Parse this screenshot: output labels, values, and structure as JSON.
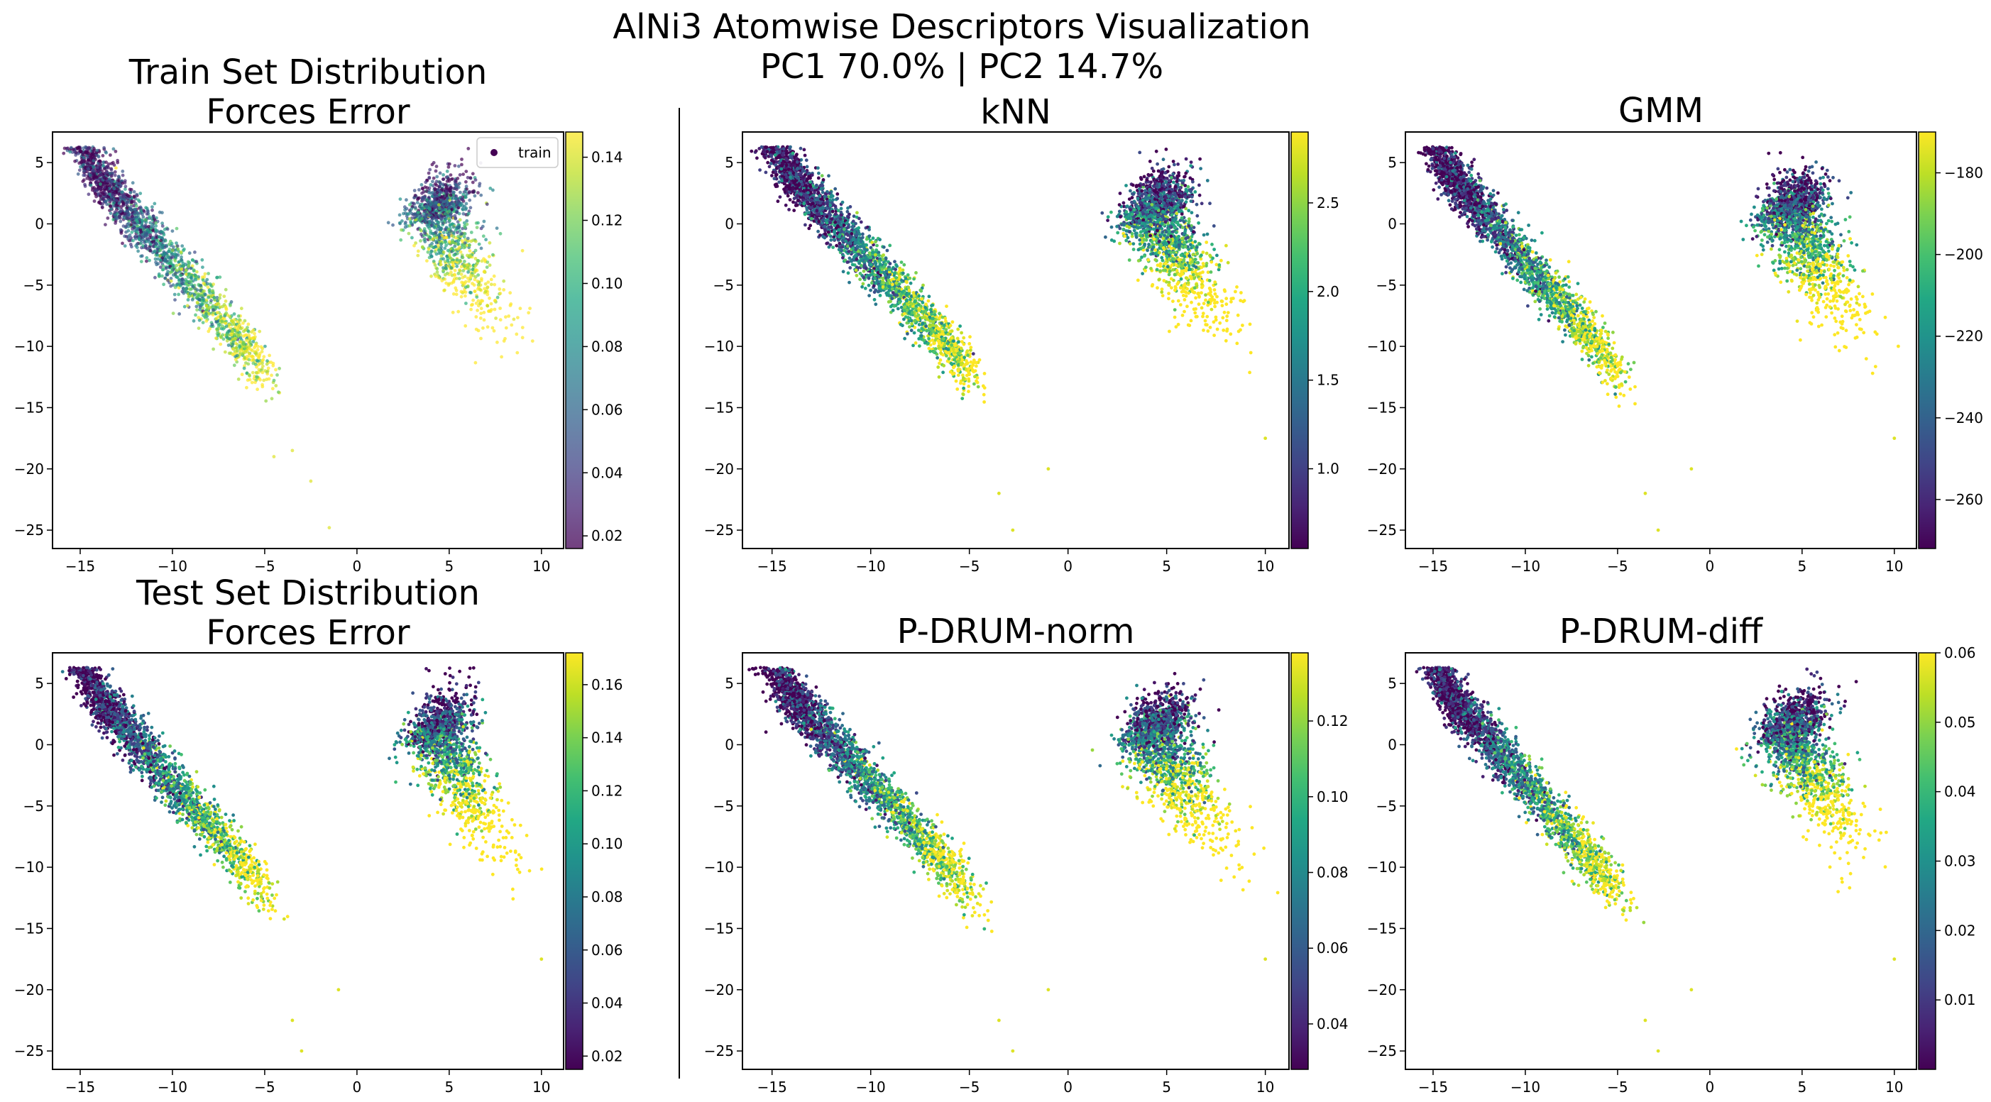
{
  "suptitle": [
    "AlNi3 Atomwise Descriptors Visualization",
    "PC1 70.0% | PC2 14.7%"
  ],
  "chart_data": [
    {
      "type": "scatter",
      "title": [
        "Train Set Distribution",
        "Forces Error"
      ],
      "colormap": "viridis",
      "alpha": 0.7,
      "legend": {
        "label": "train",
        "position": "upper-right"
      },
      "xlim": [
        -16.5,
        11.2
      ],
      "ylim": [
        -26.5,
        7.5
      ],
      "xticks": [
        -15,
        -10,
        -5,
        0,
        5,
        10
      ],
      "yticks": [
        -25,
        -20,
        -15,
        -10,
        -5,
        0,
        5
      ],
      "colorbar": {
        "min": 0.016,
        "max": 0.148,
        "ticks": [
          0.02,
          0.04,
          0.06,
          0.08,
          0.1,
          0.12,
          0.14
        ],
        "decimals": 2
      },
      "clusters": [
        {
          "center": [
            -10.0,
            -3.5
          ],
          "count": 1900,
          "color_low": 0.02,
          "color_high": 0.14
        },
        {
          "center": [
            4.5,
            -1.5
          ],
          "count": 1300,
          "color_low": 0.02,
          "color_high": 0.14
        }
      ],
      "outliers": [
        [
          -1.5,
          -24.8
        ],
        [
          -2.5,
          -21.0
        ],
        [
          -4.5,
          -19.0
        ],
        [
          -3.5,
          -18.5
        ]
      ],
      "seed": 11
    },
    {
      "type": "scatter",
      "title": [
        "kNN"
      ],
      "colormap": "viridis",
      "xlim": [
        -16.5,
        11.2
      ],
      "ylim": [
        -26.5,
        7.5
      ],
      "xticks": [
        -15,
        -10,
        -5,
        0,
        5,
        10
      ],
      "yticks": [
        -25,
        -20,
        -15,
        -10,
        -5,
        0,
        5
      ],
      "colorbar": {
        "min": 0.55,
        "max": 2.9,
        "ticks": [
          1.0,
          1.5,
          2.0,
          2.5
        ],
        "decimals": 1
      },
      "clusters": [
        {
          "center": [
            -10.0,
            -3.5
          ],
          "count": 2400,
          "color_low": 0.55,
          "color_high": 2.9
        },
        {
          "center": [
            4.5,
            -1.5
          ],
          "count": 1700,
          "color_low": 0.55,
          "color_high": 2.9
        }
      ],
      "outliers": [
        [
          -2.8,
          -25.0
        ],
        [
          -1.0,
          -20.0
        ],
        [
          -3.5,
          -22.0
        ],
        [
          10.0,
          -17.5
        ]
      ],
      "seed": 23
    },
    {
      "type": "scatter",
      "title": [
        "GMM"
      ],
      "colormap": "viridis",
      "xlim": [
        -16.5,
        11.2
      ],
      "ylim": [
        -26.5,
        7.5
      ],
      "xticks": [
        -15,
        -10,
        -5,
        0,
        5,
        10
      ],
      "yticks": [
        -25,
        -20,
        -15,
        -10,
        -5,
        0,
        5
      ],
      "colorbar": {
        "min": -272,
        "max": -170,
        "ticks": [
          -260,
          -240,
          -220,
          -200,
          -180
        ],
        "decimals": 0
      },
      "clusters": [
        {
          "center": [
            -10.0,
            -3.5
          ],
          "count": 2400,
          "color_low": -272,
          "color_high": -170
        },
        {
          "center": [
            4.5,
            -1.5
          ],
          "count": 1700,
          "color_low": -272,
          "color_high": -170
        }
      ],
      "outliers": [
        [
          -2.8,
          -25.0
        ],
        [
          -1.0,
          -20.0
        ],
        [
          -3.5,
          -22.0
        ],
        [
          10.0,
          -17.5
        ]
      ],
      "seed": 37
    },
    {
      "type": "scatter",
      "title": [
        "Test Set Distribution",
        "Forces Error"
      ],
      "colormap": "viridis",
      "xlim": [
        -16.5,
        11.2
      ],
      "ylim": [
        -26.5,
        7.5
      ],
      "xticks": [
        -15,
        -10,
        -5,
        0,
        5,
        10
      ],
      "yticks": [
        -25,
        -20,
        -15,
        -10,
        -5,
        0,
        5
      ],
      "colorbar": {
        "min": 0.015,
        "max": 0.172,
        "ticks": [
          0.02,
          0.04,
          0.06,
          0.08,
          0.1,
          0.12,
          0.14,
          0.16
        ],
        "decimals": 2
      },
      "clusters": [
        {
          "center": [
            -10.0,
            -3.5
          ],
          "count": 2100,
          "color_low": 0.015,
          "color_high": 0.172
        },
        {
          "center": [
            4.5,
            -1.5
          ],
          "count": 1500,
          "color_low": 0.015,
          "color_high": 0.172
        }
      ],
      "outliers": [
        [
          -3.0,
          -25.0
        ],
        [
          -1.0,
          -20.0
        ],
        [
          -3.5,
          -22.5
        ],
        [
          10.0,
          -17.5
        ]
      ],
      "seed": 51
    },
    {
      "type": "scatter",
      "title": [
        "P-DRUM-norm"
      ],
      "colormap": "viridis",
      "xlim": [
        -16.5,
        11.2
      ],
      "ylim": [
        -26.5,
        7.5
      ],
      "xticks": [
        -15,
        -10,
        -5,
        0,
        5,
        10
      ],
      "yticks": [
        -25,
        -20,
        -15,
        -10,
        -5,
        0,
        5
      ],
      "colorbar": {
        "min": 0.028,
        "max": 0.138,
        "ticks": [
          0.04,
          0.06,
          0.08,
          0.1,
          0.12
        ],
        "decimals": 2
      },
      "clusters": [
        {
          "center": [
            -10.0,
            -3.5
          ],
          "count": 2400,
          "color_low": 0.028,
          "color_high": 0.138
        },
        {
          "center": [
            4.5,
            -1.5
          ],
          "count": 1700,
          "color_low": 0.028,
          "color_high": 0.138
        }
      ],
      "outliers": [
        [
          -2.8,
          -25.0
        ],
        [
          -1.0,
          -20.0
        ],
        [
          -3.5,
          -22.5
        ],
        [
          10.0,
          -17.5
        ]
      ],
      "seed": 67
    },
    {
      "type": "scatter",
      "title": [
        "P-DRUM-diff"
      ],
      "colormap": "viridis",
      "xlim": [
        -16.5,
        11.2
      ],
      "ylim": [
        -26.5,
        7.5
      ],
      "xticks": [
        -15,
        -10,
        -5,
        0,
        5,
        10
      ],
      "yticks": [
        -25,
        -20,
        -15,
        -10,
        -5,
        0,
        5
      ],
      "colorbar": {
        "min": 0.0,
        "max": 0.06,
        "ticks": [
          0.01,
          0.02,
          0.03,
          0.04,
          0.05,
          0.06
        ],
        "decimals": 2
      },
      "clusters": [
        {
          "center": [
            -10.0,
            -3.5
          ],
          "count": 2400,
          "color_low": 0.0,
          "color_high": 0.06
        },
        {
          "center": [
            4.5,
            -1.5
          ],
          "count": 1700,
          "color_low": 0.0,
          "color_high": 0.06
        }
      ],
      "outliers": [
        [
          -2.8,
          -25.0
        ],
        [
          -1.0,
          -20.0
        ],
        [
          -3.5,
          -22.5
        ],
        [
          10.0,
          -17.5
        ]
      ],
      "seed": 83
    }
  ]
}
